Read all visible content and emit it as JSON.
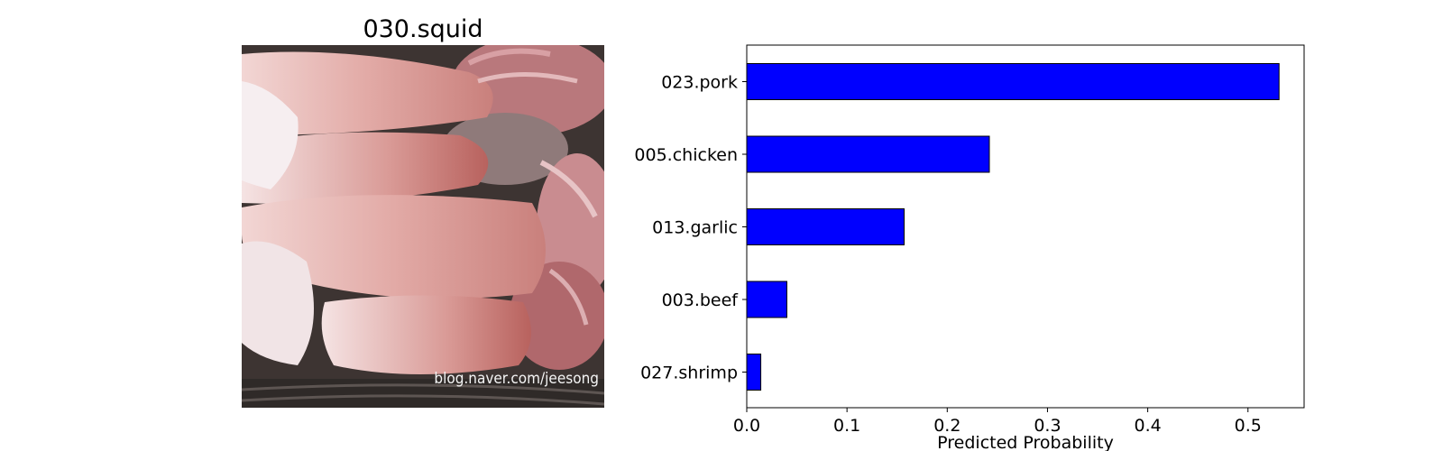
{
  "image_panel": {
    "title": "030.squid",
    "watermark": "blog.naver.com/jeesong"
  },
  "chart_data": {
    "type": "bar",
    "orientation": "horizontal",
    "categories": [
      "023.pork",
      "005.chicken",
      "013.garlic",
      "003.beef",
      "027.shrimp"
    ],
    "values": [
      0.531,
      0.242,
      0.157,
      0.04,
      0.014
    ],
    "xlabel": "Predicted Probability",
    "ylabel": "",
    "xlim": [
      0,
      0.556
    ],
    "xticks": [
      0.0,
      0.1,
      0.2,
      0.3,
      0.4,
      0.5
    ],
    "xtick_labels": [
      "0.0",
      "0.1",
      "0.2",
      "0.3",
      "0.4",
      "0.5"
    ],
    "bar_color": "#0000ff",
    "edge_color": "#000000",
    "grid": false,
    "legend": false
  }
}
